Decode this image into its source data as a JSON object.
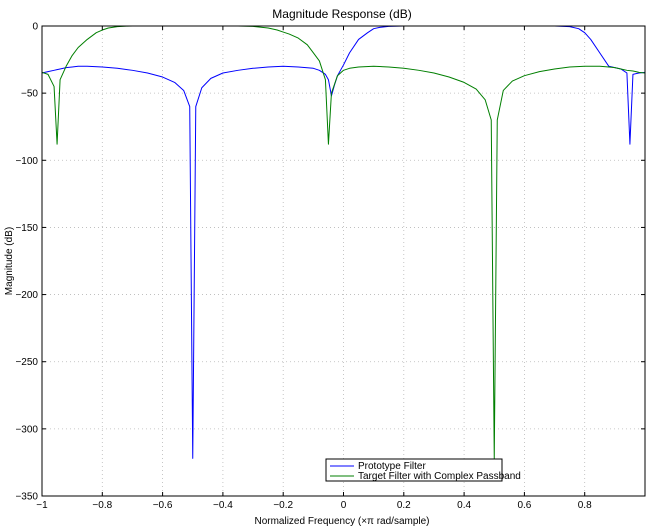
{
  "chart_data": {
    "type": "line",
    "title": "Magnitude Response (dB)",
    "xlabel": "Normalized Frequency  (×π rad/sample)",
    "ylabel": "Magnitude (dB)",
    "xlim": [
      -1,
      1
    ],
    "ylim": [
      -350,
      0
    ],
    "xticks": [
      -1,
      -0.8,
      -0.6,
      -0.4,
      -0.2,
      0,
      0.2,
      0.4,
      0.6,
      0.8
    ],
    "xtick_labels": [
      "−1",
      "−0.8",
      "−0.6",
      "−0.4",
      "−0.2",
      "0",
      "0.2",
      "0.4",
      "0.6",
      "0.8"
    ],
    "yticks": [
      0,
      -50,
      -100,
      -150,
      -200,
      -250,
      -300,
      -350
    ],
    "ytick_labels": [
      "0",
      "−50",
      "−100",
      "−150",
      "−200",
      "−250",
      "−300",
      "−350"
    ],
    "grid": true,
    "legend_position": "bottom-center",
    "series": [
      {
        "name": "Prototype Filter",
        "color": "#0000ff",
        "x": [
          -1,
          -0.98,
          -0.96,
          -0.95,
          -0.94,
          -0.92,
          -0.9,
          -0.88,
          -0.85,
          -0.8,
          -0.75,
          -0.7,
          -0.65,
          -0.6,
          -0.56,
          -0.53,
          -0.51,
          -0.5,
          -0.49,
          -0.47,
          -0.44,
          -0.4,
          -0.35,
          -0.3,
          -0.25,
          -0.2,
          -0.15,
          -0.1,
          -0.08,
          -0.06,
          -0.05,
          -0.04,
          -0.03,
          -0.02,
          0,
          0.02,
          0.05,
          0.08,
          0.1,
          0.12,
          0.15,
          0.2,
          0.25,
          0.3,
          0.35,
          0.45,
          0.55,
          0.65,
          0.7,
          0.75,
          0.78,
          0.8,
          0.82,
          0.85,
          0.88,
          0.9,
          0.92,
          0.94,
          0.95,
          0.96,
          0.98,
          1
        ],
        "y": [
          -35,
          -34,
          -33,
          -32.5,
          -32,
          -31,
          -30.5,
          -30,
          -30,
          -30.5,
          -31.5,
          -33,
          -35,
          -38,
          -42,
          -48,
          -60,
          -322,
          -60,
          -46,
          -39,
          -35,
          -33,
          -31.5,
          -30.5,
          -30,
          -30.5,
          -31.5,
          -33,
          -36,
          -40,
          -52,
          -44,
          -37,
          -29,
          -20,
          -10,
          -5,
          -2,
          -1,
          -0.3,
          0,
          0,
          0,
          0,
          0,
          0,
          0,
          0,
          -0.5,
          -2,
          -5,
          -10,
          -20,
          -30,
          -31,
          -32,
          -35,
          -88,
          -36,
          -35,
          -34.5
        ]
      },
      {
        "name": "Target Filter with Complex Passband",
        "color": "#007f00",
        "x": [
          -1,
          -0.98,
          -0.96,
          -0.95,
          -0.94,
          -0.92,
          -0.9,
          -0.88,
          -0.85,
          -0.82,
          -0.8,
          -0.78,
          -0.75,
          -0.72,
          -0.7,
          -0.65,
          -0.55,
          -0.45,
          -0.35,
          -0.3,
          -0.25,
          -0.22,
          -0.2,
          -0.18,
          -0.15,
          -0.12,
          -0.1,
          -0.08,
          -0.06,
          -0.05,
          -0.04,
          -0.02,
          0,
          0.02,
          0.05,
          0.1,
          0.15,
          0.2,
          0.25,
          0.3,
          0.35,
          0.4,
          0.44,
          0.47,
          0.49,
          0.5,
          0.51,
          0.53,
          0.56,
          0.6,
          0.65,
          0.7,
          0.75,
          0.8,
          0.85,
          0.88,
          0.9,
          0.92,
          0.94,
          0.96,
          0.98,
          1
        ],
        "y": [
          -34.5,
          -36,
          -45,
          -88,
          -40,
          -30,
          -22,
          -16,
          -10,
          -5,
          -3,
          -1.5,
          -0.5,
          -0.1,
          0,
          0,
          0,
          0,
          0,
          -0.3,
          -1.5,
          -3,
          -4.5,
          -6,
          -9,
          -14,
          -20,
          -26,
          -40,
          -88,
          -50,
          -37,
          -33,
          -31.5,
          -30.5,
          -30,
          -30.5,
          -31.5,
          -33,
          -35,
          -38,
          -42,
          -47,
          -55,
          -70,
          -322,
          -70,
          -48,
          -41,
          -37,
          -34,
          -32,
          -30.5,
          -30,
          -30,
          -30.5,
          -31,
          -32,
          -33,
          -33.5,
          -34.5,
          -35
        ]
      }
    ]
  }
}
